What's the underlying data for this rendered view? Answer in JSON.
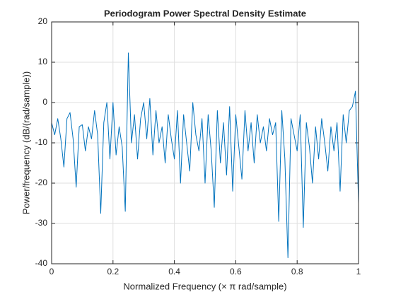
{
  "chart_data": {
    "type": "line",
    "title": "Periodogram Power Spectral Density Estimate",
    "xlabel": "Normalized  Frequency    (× π  rad/sample)",
    "ylabel": "Power/frequency (dB/(rad/sample))",
    "x": [
      0,
      0.01,
      0.02,
      0.03,
      0.04,
      0.05,
      0.06,
      0.07,
      0.08,
      0.09,
      0.1,
      0.11,
      0.12,
      0.13,
      0.14,
      0.15,
      0.16,
      0.17,
      0.18,
      0.19,
      0.2,
      0.21,
      0.22,
      0.23,
      0.24,
      0.25,
      0.26,
      0.27,
      0.28,
      0.29,
      0.3,
      0.31,
      0.32,
      0.33,
      0.34,
      0.35,
      0.36,
      0.37,
      0.38,
      0.39,
      0.4,
      0.41,
      0.42,
      0.43,
      0.44,
      0.45,
      0.46,
      0.47,
      0.48,
      0.49,
      0.5,
      0.51,
      0.52,
      0.53,
      0.54,
      0.55,
      0.56,
      0.57,
      0.58,
      0.59,
      0.6,
      0.61,
      0.62,
      0.63,
      0.64,
      0.65,
      0.66,
      0.67,
      0.68,
      0.69,
      0.7,
      0.71,
      0.72,
      0.73,
      0.74,
      0.75,
      0.76,
      0.77,
      0.78,
      0.79,
      0.8,
      0.81,
      0.82,
      0.83,
      0.84,
      0.85,
      0.86,
      0.87,
      0.88,
      0.89,
      0.9,
      0.91,
      0.92,
      0.93,
      0.94,
      0.95,
      0.96,
      0.97,
      0.98,
      0.99,
      1
    ],
    "values": [
      -5,
      -8,
      -4,
      -9,
      -16,
      -4,
      -2.5,
      -9,
      -21,
      -6,
      -5.5,
      -12,
      -6,
      -9,
      -2,
      -8,
      -27.5,
      -5,
      0,
      -14,
      0,
      -13,
      -6,
      -11,
      -27,
      12.3,
      -10,
      -3,
      -14,
      -4,
      0,
      -9,
      1,
      -13,
      -2,
      -10,
      -6,
      -15,
      -3,
      -9,
      -14,
      -2,
      -20,
      -3,
      -10,
      -17,
      0,
      -8,
      -12,
      -4,
      -20,
      -3,
      -12,
      -26,
      -2,
      -15,
      -5,
      -18,
      -1,
      -22,
      -3,
      -11,
      -19,
      -2,
      -12,
      -5,
      -15,
      -3,
      -10,
      -6,
      -12,
      -4,
      -8,
      -5,
      -29.5,
      -2,
      -14,
      -38.5,
      -4,
      -8,
      -12,
      -3,
      -31,
      -5,
      -11,
      -20,
      -6,
      -14,
      -4,
      -10,
      -17,
      -6,
      -12,
      -5,
      -22,
      -3,
      -10,
      -2,
      -1,
      2.8,
      -25
    ],
    "color": "#0072bd",
    "xlim": [
      0,
      1
    ],
    "xticks": [
      0,
      0.2,
      0.4,
      0.6,
      0.8,
      1
    ],
    "ylim": [
      -40,
      20
    ],
    "yticks": [
      -40,
      -30,
      -20,
      -10,
      0,
      10,
      20
    ],
    "grid": true
  }
}
